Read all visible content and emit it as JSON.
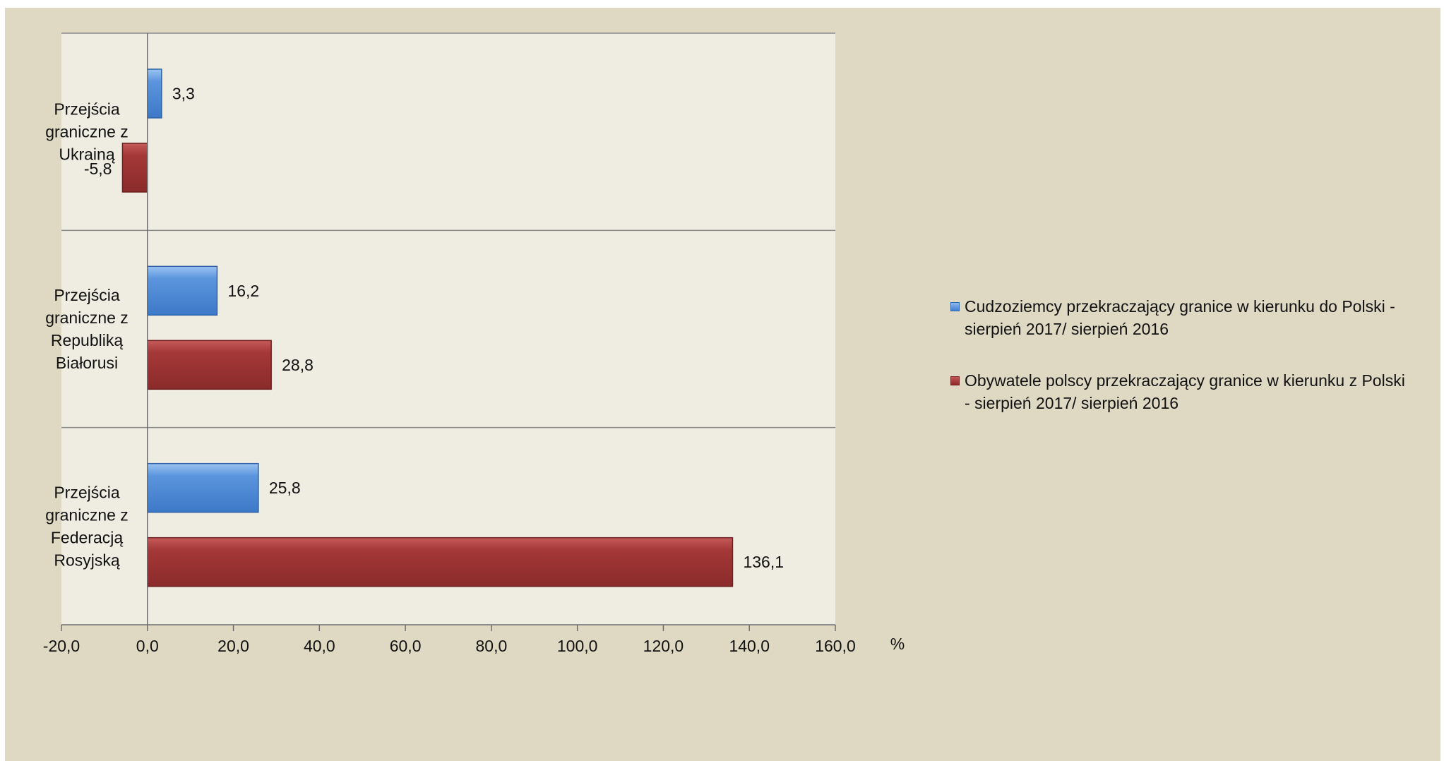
{
  "chart_data": {
    "type": "bar",
    "orientation": "horizontal",
    "categories": [
      "Przejścia graniczne z Ukrainą",
      "Przejścia graniczne z Republiką Białorusi",
      "Przejścia graniczne z Federacją Rosyjską"
    ],
    "category_label_lines": [
      [
        "Przejścia",
        "graniczne z",
        "Ukrainą"
      ],
      [
        "Przejścia",
        "graniczne z",
        "Republiką",
        "Białorusi"
      ],
      [
        "Przejścia",
        "graniczne z",
        "Federacją",
        "Rosyjską"
      ]
    ],
    "series": [
      {
        "name": "Cudzoziemcy przekraczający granice w kierunku do Polski - sierpień 2017/ sierpień 2016",
        "values": [
          3.3,
          16.2,
          25.8
        ],
        "labels": [
          "3,3",
          "16,2",
          "25,8"
        ],
        "color": "#4a86d6"
      },
      {
        "name": "Obywatele polscy przekraczający granice w kierunku z Polski - sierpień 2017/ sierpień 2016",
        "values": [
          -5.8,
          28.8,
          136.1
        ],
        "labels": [
          "-5,8",
          "28,8",
          "136,1"
        ],
        "color": "#9e3333"
      }
    ],
    "x_ticks": [
      -20,
      0,
      20,
      40,
      60,
      80,
      100,
      120,
      140,
      160
    ],
    "x_tick_labels": [
      "-20,0",
      "0,0",
      "20,0",
      "40,0",
      "60,0",
      "80,0",
      "100,0",
      "120,0",
      "140,0",
      "160,0"
    ],
    "xlim": [
      -20,
      160
    ],
    "xlabel": "%",
    "ylabel": "",
    "title": "",
    "legend_position": "right",
    "grid": "horizontal category separators",
    "colors": {
      "background": "#dfd9c4",
      "plot_background": "#efece2"
    }
  },
  "legend": {
    "items": [
      {
        "line1": "Cudzoziemcy przekraczający granice w kierunku do Polski -",
        "line2": "sierpień 2017/ sierpień 2016"
      },
      {
        "line1": "Obywatele polscy przekraczający granice w kierunku z Polski",
        "line2": "- sierpień 2017/ sierpień 2016"
      }
    ]
  }
}
